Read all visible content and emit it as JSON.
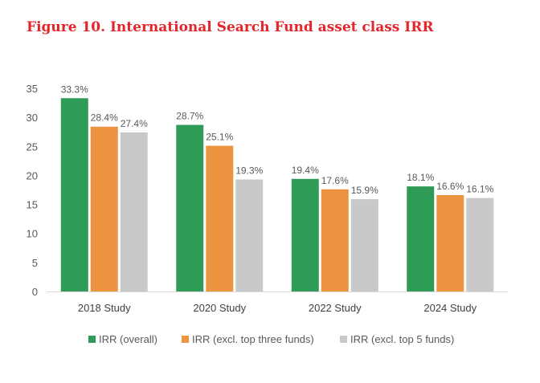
{
  "figure": {
    "title": "Figure 10. International Search Fund asset class IRR"
  },
  "chart_data": {
    "type": "bar",
    "title": "Figure 10. International Search Fund asset class IRR",
    "categories": [
      "2018 Study",
      "2020 Study",
      "2022 Study",
      "2024 Study"
    ],
    "series": [
      {
        "name": "IRR (overall)",
        "color": "#2e9c56",
        "values": [
          33.3,
          28.7,
          19.4,
          18.1
        ],
        "labels": [
          "33.3%",
          "28.7%",
          "19.4%",
          "18.1%"
        ]
      },
      {
        "name": "IRR (excl. top three funds)",
        "color": "#ec9440",
        "values": [
          28.4,
          25.1,
          17.6,
          16.6
        ],
        "labels": [
          "28.4%",
          "25.1%",
          "17.6%",
          "16.6%"
        ]
      },
      {
        "name": "IRR (excl. top 5 funds)",
        "color": "#c9c9c9",
        "values": [
          27.4,
          19.3,
          15.9,
          16.1
        ],
        "labels": [
          "27.4%",
          "19.3%",
          "15.9%",
          "16.1%"
        ]
      }
    ],
    "ylim": [
      0,
      35
    ],
    "yticks": [
      0,
      5,
      10,
      15,
      20,
      25,
      30,
      35
    ],
    "xlabel": "",
    "ylabel": "",
    "grid": false,
    "legend": "bottom"
  }
}
